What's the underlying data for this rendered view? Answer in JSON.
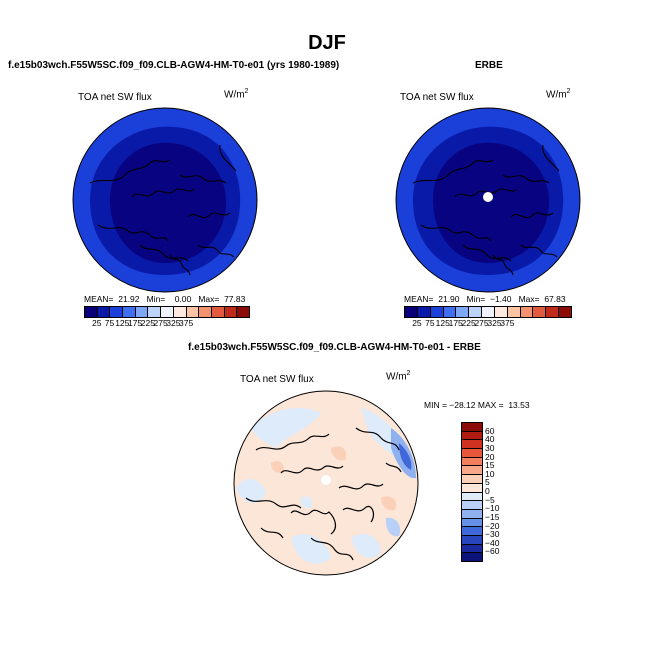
{
  "title": "DJF",
  "panels": {
    "model": {
      "case_title": "f.e15b03wch.F55W5SC.f09_f09.CLB-AGW4-HM-T0-e01 (yrs 1980-1989)",
      "field": "TOA net SW flux",
      "units_base": "W/m",
      "units_exp": "2",
      "stats": "MEAN=  21.92   Min=    0.00   Max=  77.83",
      "legend_labels": [
        "25",
        "75",
        "125",
        "175",
        "225",
        "275",
        "325",
        "375"
      ]
    },
    "obs": {
      "case_title": "ERBE",
      "field": "TOA net SW flux",
      "units_base": "W/m",
      "units_exp": "2",
      "stats": "MEAN=  21.90   Min=  −1.40   Max=  67.83",
      "legend_labels": [
        "25",
        "75",
        "125",
        "175",
        "225",
        "275",
        "325",
        "375"
      ]
    },
    "diff": {
      "case_title": "f.e15b03wch.F55W5SC.f09_f09.CLB-AGW4-HM-T0-e01 - ERBE",
      "field": "TOA net SW flux",
      "units_base": "W/m",
      "units_exp": "2",
      "minmax": "MIN = −28.12 MAX =  13.53",
      "legend_labels": [
        "60",
        "40",
        "30",
        "20",
        "15",
        "10",
        "5",
        "0",
        "−5",
        "−10",
        "−15",
        "−20",
        "−30",
        "−40",
        "−60"
      ]
    }
  },
  "colors": {
    "abs_scale": [
      "#08007a",
      "#0a1aa8",
      "#1b3fd9",
      "#3f6ef2",
      "#7fa7f7",
      "#bcd4fb",
      "#eef3ff",
      "#fde9dd",
      "#f9c3a4",
      "#f2926e",
      "#e35b3f",
      "#c22a1c",
      "#8a0b07"
    ],
    "diff_scale": [
      "#8a0b07",
      "#b01b12",
      "#cf3220",
      "#e8573a",
      "#f2805e",
      "#f7a888",
      "#fbd0b8",
      "#fbe6d8",
      "#deebfb",
      "#b9d0f6",
      "#90b1ef",
      "#6690e6",
      "#4168da",
      "#2a44be",
      "#1a2a9c",
      "#0b1378"
    ],
    "land_outline": "#000000"
  }
}
